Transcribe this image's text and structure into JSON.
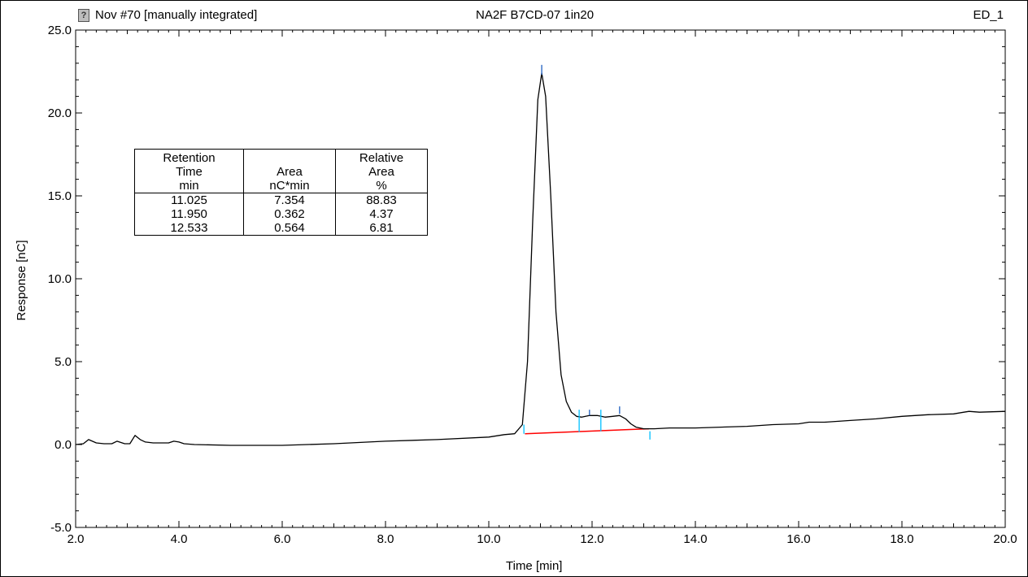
{
  "header": {
    "left": "Nov #70 [manually integrated]",
    "center": "NA2F B7CD-07 1in20",
    "right": "ED_1"
  },
  "chart_data": {
    "type": "line",
    "xlabel": "Time [min]",
    "ylabel": "Response [nC]",
    "xlim": [
      2.0,
      20.0
    ],
    "ylim": [
      -5.0,
      25.0
    ],
    "x_ticks": [
      "2.0",
      "4.0",
      "6.0",
      "8.0",
      "10.0",
      "12.0",
      "14.0",
      "16.0",
      "18.0",
      "20.0"
    ],
    "y_ticks": [
      "-5.0",
      "0.0",
      "5.0",
      "10.0",
      "15.0",
      "20.0",
      "25.0"
    ],
    "colors": {
      "trace": "#000000",
      "baseline": "#ff0000",
      "markers": "#00bfff",
      "ticks": "#1f5fbf"
    },
    "series": [
      {
        "x": [
          2.0,
          2.15,
          2.25,
          2.4,
          2.55,
          2.7,
          2.8,
          2.95,
          3.05,
          3.15,
          3.25,
          3.35,
          3.5,
          3.65,
          3.8,
          3.9,
          4.0,
          4.1,
          4.3,
          5.0,
          6.0,
          7.0,
          8.0,
          9.0,
          10.0,
          10.3,
          10.5,
          10.65,
          10.75,
          10.85,
          10.95,
          11.025,
          11.1,
          11.2,
          11.3,
          11.4,
          11.5,
          11.6,
          11.7,
          11.8,
          11.95,
          12.1,
          12.25,
          12.4,
          12.533,
          12.65,
          12.75,
          12.85,
          13.0,
          13.2,
          13.5,
          14.0,
          15.0,
          15.5,
          16.0,
          16.2,
          16.5,
          17.0,
          17.5,
          18.0,
          18.5,
          19.0,
          19.2,
          19.3,
          19.5,
          20.0
        ],
        "y": [
          0.0,
          0.05,
          0.3,
          0.1,
          0.05,
          0.05,
          0.2,
          0.05,
          0.05,
          0.55,
          0.3,
          0.15,
          0.1,
          0.1,
          0.1,
          0.2,
          0.15,
          0.05,
          0.0,
          -0.05,
          -0.05,
          0.05,
          0.2,
          0.3,
          0.45,
          0.6,
          0.65,
          1.2,
          5.0,
          13.5,
          20.8,
          22.4,
          21.0,
          15.0,
          8.0,
          4.2,
          2.6,
          1.95,
          1.7,
          1.65,
          1.75,
          1.75,
          1.65,
          1.7,
          1.75,
          1.55,
          1.25,
          1.05,
          0.95,
          0.95,
          1.0,
          1.0,
          1.1,
          1.2,
          1.25,
          1.35,
          1.35,
          1.45,
          1.55,
          1.7,
          1.8,
          1.85,
          1.95,
          2.0,
          1.95,
          2.0
        ]
      }
    ],
    "baseline": {
      "x": [
        10.7,
        13.1
      ],
      "y": [
        0.65,
        0.95
      ]
    },
    "peak_markers": [
      {
        "x": 11.025,
        "y_top": 22.9,
        "y_bottom": 22.3
      },
      {
        "x": 11.95,
        "y_top": 2.1,
        "y_bottom": 1.75
      },
      {
        "x": 12.533,
        "y_top": 2.3,
        "y_bottom": 1.85
      }
    ],
    "boundary_markers": [
      {
        "x": 10.68,
        "y_top": 1.2,
        "y_bottom": 0.65
      },
      {
        "x": 11.75,
        "y_top": 2.1,
        "y_bottom": 0.75
      },
      {
        "x": 12.17,
        "y_top": 2.1,
        "y_bottom": 0.8
      },
      {
        "x": 13.12,
        "y_top": 0.8,
        "y_bottom": 0.3
      }
    ],
    "table": {
      "headers": [
        [
          "Retention",
          "Time",
          "min"
        ],
        [
          "",
          "Area",
          "nC*min"
        ],
        [
          "Relative",
          "Area",
          "%"
        ]
      ],
      "rows": [
        [
          "11.025",
          "7.354",
          "88.83"
        ],
        [
          "11.950",
          "0.362",
          "4.37"
        ],
        [
          "12.533",
          "0.564",
          "6.81"
        ]
      ]
    }
  }
}
